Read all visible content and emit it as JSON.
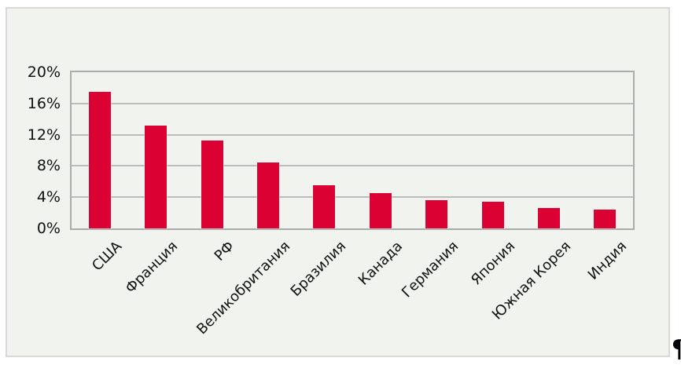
{
  "page": {
    "pilcrow": "¶"
  },
  "chart_data": {
    "type": "bar",
    "title": "",
    "xlabel": "",
    "ylabel": "",
    "categories": [
      "США",
      "Франция",
      "РФ",
      "Великобритания",
      "Бразилия",
      "Канада",
      "Германия",
      "Япония",
      "Южная Корея",
      "Индия"
    ],
    "values": [
      17.5,
      13.2,
      11.3,
      8.4,
      5.5,
      4.5,
      3.6,
      3.4,
      2.6,
      2.4
    ],
    "ylim": [
      0,
      20
    ],
    "yticks": [
      0,
      4,
      8,
      12,
      16,
      20
    ],
    "ytick_labels": [
      "0%",
      "4%",
      "8%",
      "12%",
      "16%",
      "20%"
    ],
    "grid": true,
    "legend": false,
    "label_rotation_deg": -45,
    "bar_color": "#DB0233",
    "background_color": "#F0F3EE",
    "gridline_color": "#BCBCBC",
    "axis_border_color": "#ABABAB",
    "frame_border_color": "#D9D9D9",
    "text_color": "#111111"
  }
}
